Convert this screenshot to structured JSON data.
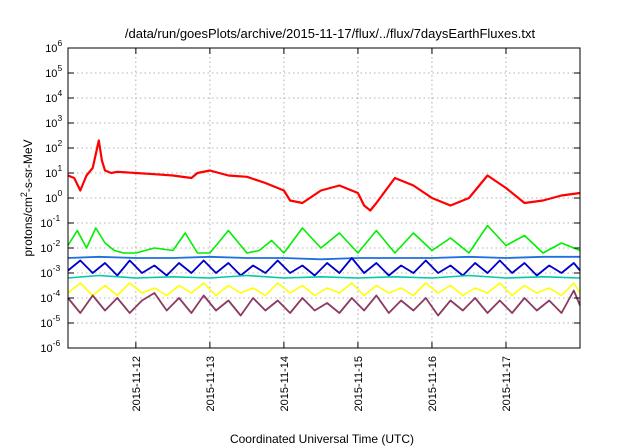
{
  "chart_data": {
    "type": "line",
    "title": "/data/run/goesPlots/archive/2015-11-17/flux/../flux/7daysEarthFluxes.txt",
    "xlabel": "Coordinated Universal Time (UTC)",
    "ylabel_base": "protons/cm",
    "ylabel_sup": "2",
    "ylabel_rest": "-s-sr-MeV",
    "y_scale": "log",
    "ylim_exp": [
      -6,
      6
    ],
    "y_ticks": [
      {
        "base": "10",
        "exp": "-6",
        "value_exp": -6
      },
      {
        "base": "10",
        "exp": "-5",
        "value_exp": -5
      },
      {
        "base": "10",
        "exp": "-4",
        "value_exp": -4
      },
      {
        "base": "10",
        "exp": "-3",
        "value_exp": -3
      },
      {
        "base": "10",
        "exp": "-2",
        "value_exp": -2
      },
      {
        "base": "10",
        "exp": "-1",
        "value_exp": -1
      },
      {
        "base": "10",
        "exp": "0",
        "value_exp": 0
      },
      {
        "base": "10",
        "exp": "1",
        "value_exp": 1
      },
      {
        "base": "10",
        "exp": "2",
        "value_exp": 2
      },
      {
        "base": "10",
        "exp": "3",
        "value_exp": 3
      },
      {
        "base": "10",
        "exp": "4",
        "value_exp": 4
      },
      {
        "base": "10",
        "exp": "5",
        "value_exp": 5
      },
      {
        "base": "10",
        "exp": "6",
        "value_exp": 6
      }
    ],
    "xlim": [
      "2015-11-11T02:00",
      "2015-11-18T00:00"
    ],
    "x_ticks": [
      "2015-11-12",
      "2015-11-13",
      "2015-11-14",
      "2015-11-15",
      "2015-11-16",
      "2015-11-17"
    ],
    "grid": true,
    "series": [
      {
        "color": "#ff0000",
        "stroke_width": 2.2,
        "x": [
          "2015-11-11T02:00",
          "2015-11-11T04:00",
          "2015-11-11T06:00",
          "2015-11-11T08:00",
          "2015-11-11T10:00",
          "2015-11-11T12:00",
          "2015-11-11T13:00",
          "2015-11-11T14:00",
          "2015-11-11T16:00",
          "2015-11-11T18:00",
          "2015-11-12T00:00",
          "2015-11-12T06:00",
          "2015-11-12T12:00",
          "2015-11-12T18:00",
          "2015-11-12T20:00",
          "2015-11-13T00:00",
          "2015-11-13T06:00",
          "2015-11-13T12:00",
          "2015-11-13T18:00",
          "2015-11-14T00:00",
          "2015-11-14T02:00",
          "2015-11-14T06:00",
          "2015-11-14T12:00",
          "2015-11-14T18:00",
          "2015-11-15T00:00",
          "2015-11-15T02:00",
          "2015-11-15T04:00",
          "2015-11-15T06:00",
          "2015-11-15T12:00",
          "2015-11-15T18:00",
          "2015-11-16T00:00",
          "2015-11-16T06:00",
          "2015-11-16T12:00",
          "2015-11-16T18:00",
          "2015-11-17T00:00",
          "2015-11-17T06:00",
          "2015-11-17T12:00",
          "2015-11-17T18:00",
          "2015-11-18T00:00"
        ],
        "y_exp": [
          0.9,
          0.8,
          0.3,
          0.9,
          1.2,
          2.3,
          1.5,
          1.1,
          1.0,
          1.05,
          1.0,
          0.95,
          0.9,
          0.8,
          1.0,
          1.1,
          0.9,
          0.85,
          0.6,
          0.3,
          -0.1,
          -0.2,
          0.3,
          0.5,
          0.2,
          -0.3,
          -0.5,
          -0.2,
          0.8,
          0.5,
          0.0,
          -0.3,
          0.0,
          0.9,
          0.4,
          -0.2,
          -0.1,
          0.1,
          0.2
        ]
      },
      {
        "color": "#00ee00",
        "stroke_width": 1.6,
        "x": [
          "2015-11-11T02:00",
          "2015-11-11T05:00",
          "2015-11-11T08:00",
          "2015-11-11T11:00",
          "2015-11-11T14:00",
          "2015-11-11T17:00",
          "2015-11-11T20:00",
          "2015-11-12T00:00",
          "2015-11-12T06:00",
          "2015-11-12T12:00",
          "2015-11-12T16:00",
          "2015-11-12T20:00",
          "2015-11-13T00:00",
          "2015-11-13T06:00",
          "2015-11-13T12:00",
          "2015-11-13T16:00",
          "2015-11-13T20:00",
          "2015-11-14T00:00",
          "2015-11-14T06:00",
          "2015-11-14T12:00",
          "2015-11-14T18:00",
          "2015-11-15T00:00",
          "2015-11-15T06:00",
          "2015-11-15T12:00",
          "2015-11-15T18:00",
          "2015-11-16T00:00",
          "2015-11-16T06:00",
          "2015-11-16T12:00",
          "2015-11-16T18:00",
          "2015-11-17T00:00",
          "2015-11-17T06:00",
          "2015-11-17T12:00",
          "2015-11-17T18:00",
          "2015-11-18T00:00"
        ],
        "y_exp": [
          -1.9,
          -1.3,
          -2.0,
          -1.2,
          -1.8,
          -2.1,
          -2.2,
          -2.2,
          -2.0,
          -2.1,
          -1.4,
          -2.2,
          -2.2,
          -1.3,
          -2.2,
          -2.1,
          -1.7,
          -2.2,
          -1.2,
          -2.0,
          -1.4,
          -2.2,
          -1.3,
          -2.2,
          -1.4,
          -2.1,
          -1.6,
          -2.2,
          -1.1,
          -1.9,
          -1.5,
          -2.2,
          -1.8,
          -2.1
        ]
      },
      {
        "color": "#1e6fe0",
        "stroke_width": 1.8,
        "x": [
          "2015-11-11T02:00",
          "2015-11-11T12:00",
          "2015-11-12T00:00",
          "2015-11-12T12:00",
          "2015-11-13T00:00",
          "2015-11-13T12:00",
          "2015-11-14T00:00",
          "2015-11-14T12:00",
          "2015-11-15T00:00",
          "2015-11-15T12:00",
          "2015-11-16T00:00",
          "2015-11-16T12:00",
          "2015-11-17T00:00",
          "2015-11-17T12:00",
          "2015-11-18T00:00"
        ],
        "y_exp": [
          -2.4,
          -2.35,
          -2.4,
          -2.4,
          -2.35,
          -2.4,
          -2.4,
          -2.45,
          -2.4,
          -2.4,
          -2.4,
          -2.35,
          -2.4,
          -2.35,
          -2.35
        ]
      },
      {
        "color": "#0000cc",
        "stroke_width": 1.8,
        "x": [
          "2015-11-11T02:00",
          "2015-11-11T06:00",
          "2015-11-11T10:00",
          "2015-11-11T14:00",
          "2015-11-11T18:00",
          "2015-11-11T22:00",
          "2015-11-12T02:00",
          "2015-11-12T06:00",
          "2015-11-12T10:00",
          "2015-11-12T14:00",
          "2015-11-12T18:00",
          "2015-11-12T22:00",
          "2015-11-13T02:00",
          "2015-11-13T06:00",
          "2015-11-13T10:00",
          "2015-11-13T14:00",
          "2015-11-13T18:00",
          "2015-11-13T22:00",
          "2015-11-14T02:00",
          "2015-11-14T06:00",
          "2015-11-14T10:00",
          "2015-11-14T14:00",
          "2015-11-14T18:00",
          "2015-11-14T22:00",
          "2015-11-15T02:00",
          "2015-11-15T06:00",
          "2015-11-15T10:00",
          "2015-11-15T14:00",
          "2015-11-15T18:00",
          "2015-11-15T22:00",
          "2015-11-16T02:00",
          "2015-11-16T06:00",
          "2015-11-16T10:00",
          "2015-11-16T14:00",
          "2015-11-16T18:00",
          "2015-11-16T22:00",
          "2015-11-17T02:00",
          "2015-11-17T06:00",
          "2015-11-17T10:00",
          "2015-11-17T14:00",
          "2015-11-17T18:00",
          "2015-11-17T22:00",
          "2015-11-18T00:00"
        ],
        "y_exp": [
          -2.9,
          -2.5,
          -3.0,
          -2.6,
          -3.1,
          -2.5,
          -3.0,
          -2.7,
          -3.1,
          -2.6,
          -3.0,
          -2.5,
          -3.0,
          -2.6,
          -3.1,
          -2.7,
          -3.0,
          -2.5,
          -3.0,
          -2.7,
          -3.1,
          -2.6,
          -3.0,
          -2.4,
          -3.0,
          -2.6,
          -3.1,
          -2.7,
          -3.0,
          -2.5,
          -3.0,
          -2.7,
          -3.1,
          -2.6,
          -3.0,
          -2.5,
          -3.0,
          -2.6,
          -3.1,
          -2.7,
          -3.0,
          -2.6,
          -2.9
        ]
      },
      {
        "color": "#00c8aa",
        "stroke_width": 1.6,
        "x": [
          "2015-11-11T02:00",
          "2015-11-11T12:00",
          "2015-11-12T00:00",
          "2015-11-12T12:00",
          "2015-11-13T00:00",
          "2015-11-13T12:00",
          "2015-11-14T00:00",
          "2015-11-14T12:00",
          "2015-11-15T00:00",
          "2015-11-15T12:00",
          "2015-11-16T00:00",
          "2015-11-16T12:00",
          "2015-11-17T00:00",
          "2015-11-17T12:00",
          "2015-11-18T00:00"
        ],
        "y_exp": [
          -3.2,
          -3.1,
          -3.2,
          -3.15,
          -3.2,
          -3.1,
          -3.2,
          -3.15,
          -3.2,
          -3.15,
          -3.2,
          -3.1,
          -3.2,
          -3.15,
          -3.2
        ]
      },
      {
        "color": "#ffff00",
        "stroke_width": 1.6,
        "x": [
          "2015-11-11T02:00",
          "2015-11-11T06:00",
          "2015-11-11T10:00",
          "2015-11-11T14:00",
          "2015-11-11T18:00",
          "2015-11-11T22:00",
          "2015-11-12T02:00",
          "2015-11-12T06:00",
          "2015-11-12T10:00",
          "2015-11-12T14:00",
          "2015-11-12T18:00",
          "2015-11-12T22:00",
          "2015-11-13T02:00",
          "2015-11-13T06:00",
          "2015-11-13T10:00",
          "2015-11-13T14:00",
          "2015-11-13T18:00",
          "2015-11-13T22:00",
          "2015-11-14T02:00",
          "2015-11-14T06:00",
          "2015-11-14T10:00",
          "2015-11-14T14:00",
          "2015-11-14T18:00",
          "2015-11-14T22:00",
          "2015-11-15T02:00",
          "2015-11-15T06:00",
          "2015-11-15T10:00",
          "2015-11-15T14:00",
          "2015-11-15T18:00",
          "2015-11-15T22:00",
          "2015-11-16T02:00",
          "2015-11-16T06:00",
          "2015-11-16T10:00",
          "2015-11-16T14:00",
          "2015-11-16T18:00",
          "2015-11-16T22:00",
          "2015-11-17T02:00",
          "2015-11-17T06:00",
          "2015-11-17T10:00",
          "2015-11-17T14:00",
          "2015-11-17T18:00",
          "2015-11-17T22:00",
          "2015-11-18T00:00"
        ],
        "y_exp": [
          -3.8,
          -3.4,
          -3.9,
          -3.5,
          -3.9,
          -3.4,
          -3.8,
          -3.6,
          -3.9,
          -3.5,
          -3.8,
          -3.4,
          -3.9,
          -3.5,
          -3.8,
          -3.6,
          -3.9,
          -3.4,
          -3.8,
          -3.5,
          -3.9,
          -3.6,
          -3.8,
          -3.4,
          -3.9,
          -3.5,
          -3.8,
          -3.6,
          -3.9,
          -3.4,
          -3.8,
          -3.5,
          -3.9,
          -3.6,
          -3.8,
          -3.4,
          -3.9,
          -3.5,
          -3.8,
          -3.6,
          -3.9,
          -3.4,
          -3.8
        ]
      },
      {
        "color": "#8b3a62",
        "stroke_width": 1.8,
        "x": [
          "2015-11-11T02:00",
          "2015-11-11T06:00",
          "2015-11-11T10:00",
          "2015-11-11T14:00",
          "2015-11-11T18:00",
          "2015-11-11T22:00",
          "2015-11-12T02:00",
          "2015-11-12T06:00",
          "2015-11-12T10:00",
          "2015-11-12T14:00",
          "2015-11-12T18:00",
          "2015-11-12T22:00",
          "2015-11-13T02:00",
          "2015-11-13T06:00",
          "2015-11-13T10:00",
          "2015-11-13T14:00",
          "2015-11-13T18:00",
          "2015-11-13T22:00",
          "2015-11-14T02:00",
          "2015-11-14T06:00",
          "2015-11-14T10:00",
          "2015-11-14T14:00",
          "2015-11-14T18:00",
          "2015-11-14T22:00",
          "2015-11-15T02:00",
          "2015-11-15T06:00",
          "2015-11-15T10:00",
          "2015-11-15T14:00",
          "2015-11-15T18:00",
          "2015-11-15T22:00",
          "2015-11-16T02:00",
          "2015-11-16T06:00",
          "2015-11-16T10:00",
          "2015-11-16T14:00",
          "2015-11-16T18:00",
          "2015-11-16T22:00",
          "2015-11-17T02:00",
          "2015-11-17T06:00",
          "2015-11-17T10:00",
          "2015-11-17T14:00",
          "2015-11-17T18:00",
          "2015-11-17T22:00",
          "2015-11-18T00:00"
        ],
        "y_exp": [
          -4.0,
          -4.6,
          -3.9,
          -4.5,
          -4.0,
          -4.6,
          -4.1,
          -3.8,
          -4.5,
          -4.0,
          -4.6,
          -3.9,
          -4.5,
          -4.1,
          -4.7,
          -4.0,
          -4.5,
          -4.1,
          -4.6,
          -4.0,
          -4.5,
          -4.2,
          -4.6,
          -4.0,
          -4.5,
          -3.9,
          -4.6,
          -4.1,
          -4.5,
          -4.0,
          -4.7,
          -4.1,
          -4.5,
          -4.0,
          -4.6,
          -4.1,
          -4.6,
          -4.0,
          -4.5,
          -4.1,
          -4.6,
          -3.7,
          -4.3
        ]
      }
    ]
  }
}
